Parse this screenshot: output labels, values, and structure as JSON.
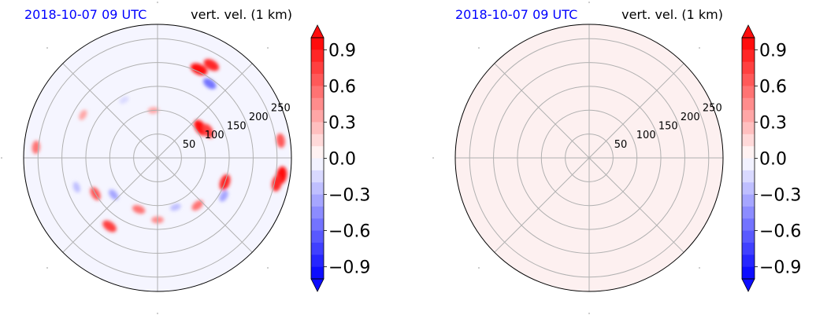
{
  "figure": {
    "panels": [
      {
        "time_label": "2018-10-07 09 UTC",
        "field_label": "vert. vel. (1 km)"
      },
      {
        "time_label": "2018-10-07 09 UTC",
        "field_label": "vert. vel. (1 km)"
      }
    ]
  },
  "colors": {
    "time_label": "#0000ff",
    "grid": "#b0b0b0",
    "uniform_fill": "#fdf0f0",
    "colormap": [
      "#0000ff",
      "#ffffff",
      "#ff0000"
    ]
  },
  "chart_data": [
    {
      "type": "heatmap",
      "projection": "polar",
      "field": "vertical velocity at 1 km",
      "title_left": "2018-10-07 09 UTC",
      "title_right": "vert. vel. (1 km)",
      "radial_ticks": [
        "50",
        "100",
        "150",
        "200",
        "250"
      ],
      "radial_tick_values": [
        50,
        100,
        150,
        200,
        250
      ],
      "rmax": 280,
      "angular_grid_deg": [
        0,
        45,
        90,
        135,
        180,
        225,
        270,
        315
      ],
      "grid": true,
      "colorbar": {
        "ticks": [
          "0.9",
          "0.6",
          "0.3",
          "0.0",
          "−0.3",
          "−0.6",
          "−0.9"
        ],
        "tick_values": [
          0.9,
          0.6,
          0.3,
          0.0,
          -0.3,
          -0.6,
          -0.9
        ],
        "vmin": -1.0,
        "vmax": 1.0,
        "levels": 20,
        "extend": "both",
        "colormap": "bwr"
      },
      "features": [
        {
          "theta_deg": 65,
          "r": 205,
          "value": 0.9
        },
        {
          "theta_deg": 60,
          "r": 225,
          "value": 0.8
        },
        {
          "theta_deg": 55,
          "r": 190,
          "value": -0.6
        },
        {
          "theta_deg": 35,
          "r": 110,
          "value": 0.9
        },
        {
          "theta_deg": 28,
          "r": 120,
          "value": 0.7
        },
        {
          "theta_deg": 8,
          "r": 260,
          "value": 0.6
        },
        {
          "theta_deg": -8,
          "r": 262,
          "value": 0.9
        },
        {
          "theta_deg": -12,
          "r": 255,
          "value": 0.8
        },
        {
          "theta_deg": -20,
          "r": 150,
          "value": 0.8
        },
        {
          "theta_deg": -30,
          "r": 160,
          "value": -0.4
        },
        {
          "theta_deg": -50,
          "r": 130,
          "value": 0.5
        },
        {
          "theta_deg": -70,
          "r": 110,
          "value": -0.3
        },
        {
          "theta_deg": -90,
          "r": 130,
          "value": 0.4
        },
        {
          "theta_deg": -110,
          "r": 115,
          "value": 0.5
        },
        {
          "theta_deg": -125,
          "r": 175,
          "value": 0.7
        },
        {
          "theta_deg": -140,
          "r": 120,
          "value": -0.4
        },
        {
          "theta_deg": -150,
          "r": 150,
          "value": 0.6
        },
        {
          "theta_deg": 175,
          "r": 255,
          "value": 0.5
        },
        {
          "theta_deg": 150,
          "r": 180,
          "value": 0.3
        },
        {
          "theta_deg": 120,
          "r": 140,
          "value": -0.2
        },
        {
          "theta_deg": 95,
          "r": 100,
          "value": 0.3
        },
        {
          "theta_deg": 200,
          "r": 180,
          "value": -0.3
        }
      ]
    },
    {
      "type": "heatmap",
      "projection": "polar",
      "field": "vertical velocity at 1 km",
      "title_left": "2018-10-07 09 UTC",
      "title_right": "vert. vel. (1 km)",
      "radial_ticks": [
        "50",
        "100",
        "150",
        "200",
        "250"
      ],
      "radial_tick_values": [
        50,
        100,
        150,
        200,
        250
      ],
      "rmax": 280,
      "angular_grid_deg": [
        0,
        45,
        90,
        135,
        180,
        225,
        270,
        315
      ],
      "grid": true,
      "uniform_value": 0.0,
      "colorbar": {
        "ticks": [
          "0.9",
          "0.6",
          "0.3",
          "0.0",
          "−0.3",
          "−0.6",
          "−0.9"
        ],
        "tick_values": [
          0.9,
          0.6,
          0.3,
          0.0,
          -0.3,
          -0.6,
          -0.9
        ],
        "vmin": -1.0,
        "vmax": 1.0,
        "levels": 20,
        "extend": "both",
        "colormap": "bwr"
      },
      "features": []
    }
  ]
}
